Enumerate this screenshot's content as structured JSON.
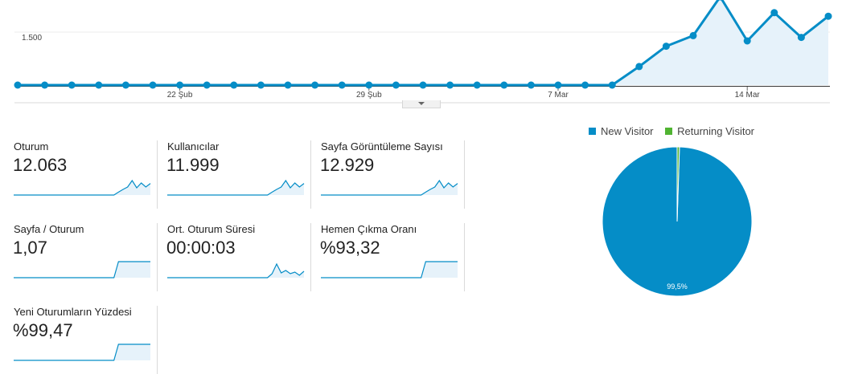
{
  "chart_data": [
    {
      "type": "line",
      "name": "overview",
      "x_tick_labels": [
        "22 Şub",
        "29 Şub",
        "7 Mar",
        "14 Mar"
      ],
      "y_tick_labels": [
        "1.500"
      ],
      "values": [
        0,
        0,
        0,
        0,
        0,
        0,
        0,
        0,
        0,
        0,
        0,
        0,
        0,
        0,
        0,
        0,
        0,
        0,
        0,
        0,
        0,
        0,
        0,
        525,
        1100,
        1400,
        2500,
        1250,
        2050,
        1350,
        1950
      ],
      "grid": true,
      "color": "#058dc7",
      "fill_color": "#e6f2fa"
    },
    {
      "type": "pie",
      "name": "visitor-type",
      "legend": [
        "New Visitor",
        "Returning Visitor"
      ],
      "values": [
        99.5,
        0.5
      ],
      "colors": [
        "#058dc7",
        "#50b432"
      ],
      "slice_label": "99,5%",
      "legend_position": "top"
    }
  ],
  "metrics": [
    {
      "label": "Oturum",
      "value": "12.063",
      "spark": [
        0,
        0,
        0,
        0,
        0,
        0,
        0,
        0,
        0,
        0,
        0,
        0,
        0,
        0,
        0,
        0,
        0,
        0,
        0,
        0,
        0,
        0,
        0,
        0.18,
        0.35,
        0.5,
        0.9,
        0.45,
        0.75,
        0.5,
        0.72
      ]
    },
    {
      "label": "Kullanıcılar",
      "value": "11.999",
      "spark": [
        0,
        0,
        0,
        0,
        0,
        0,
        0,
        0,
        0,
        0,
        0,
        0,
        0,
        0,
        0,
        0,
        0,
        0,
        0,
        0,
        0,
        0,
        0,
        0.18,
        0.35,
        0.5,
        0.9,
        0.45,
        0.75,
        0.5,
        0.72
      ]
    },
    {
      "label": "Sayfa Görüntüleme Sayısı",
      "value": "12.929",
      "spark": [
        0,
        0,
        0,
        0,
        0,
        0,
        0,
        0,
        0,
        0,
        0,
        0,
        0,
        0,
        0,
        0,
        0,
        0,
        0,
        0,
        0,
        0,
        0,
        0.18,
        0.35,
        0.5,
        0.9,
        0.45,
        0.75,
        0.5,
        0.72
      ]
    },
    {
      "label": "Sayfa / Oturum",
      "value": "1,07",
      "spark": [
        0,
        0,
        0,
        0,
        0,
        0,
        0,
        0,
        0,
        0,
        0,
        0,
        0,
        0,
        0,
        0,
        0,
        0,
        0,
        0,
        0,
        0,
        0,
        1,
        1,
        1,
        1,
        1,
        1,
        1,
        1
      ]
    },
    {
      "label": "Ort. Oturum Süresi",
      "value": "00:00:03",
      "spark": [
        0,
        0,
        0,
        0,
        0,
        0,
        0,
        0,
        0,
        0,
        0,
        0,
        0,
        0,
        0,
        0,
        0,
        0,
        0,
        0,
        0,
        0,
        0,
        0.25,
        0.85,
        0.3,
        0.45,
        0.25,
        0.35,
        0.15,
        0.4
      ]
    },
    {
      "label": "Hemen Çıkma Oranı",
      "value": "%93,32",
      "spark": [
        0,
        0,
        0,
        0,
        0,
        0,
        0,
        0,
        0,
        0,
        0,
        0,
        0,
        0,
        0,
        0,
        0,
        0,
        0,
        0,
        0,
        0,
        0,
        1,
        1,
        1,
        1,
        1,
        1,
        1,
        1
      ]
    },
    {
      "label": "Yeni Oturumların Yüzdesi",
      "value": "%99,47",
      "spark": [
        0,
        0,
        0,
        0,
        0,
        0,
        0,
        0,
        0,
        0,
        0,
        0,
        0,
        0,
        0,
        0,
        0,
        0,
        0,
        0,
        0,
        0,
        0,
        1,
        1,
        1,
        1,
        1,
        1,
        1,
        1
      ]
    }
  ]
}
